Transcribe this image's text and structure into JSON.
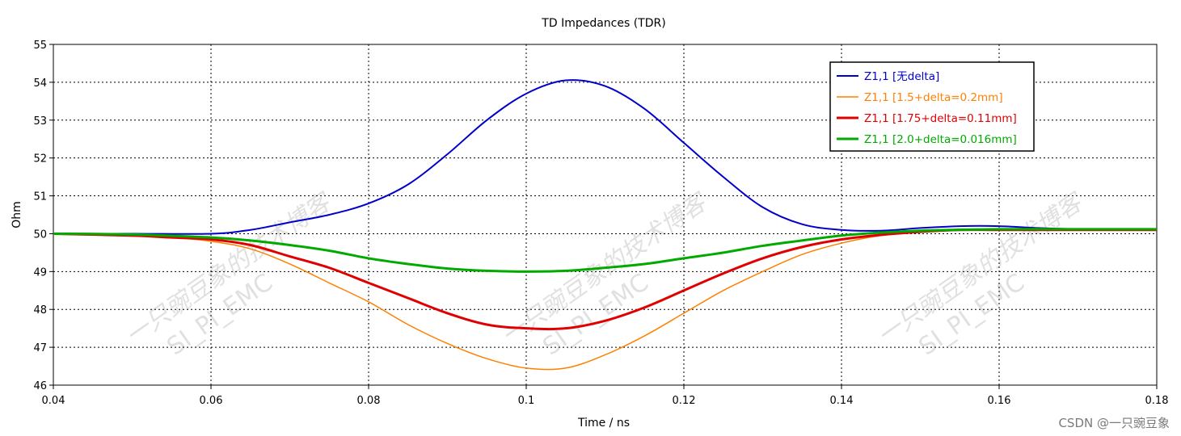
{
  "chart_data": {
    "type": "line",
    "title": "TD Impedances (TDR)",
    "xlabel": "Time / ns",
    "ylabel": "Ohm",
    "xlim": [
      0.04,
      0.18
    ],
    "ylim": [
      46,
      55
    ],
    "xticks": [
      0.04,
      0.06,
      0.08,
      0.1,
      0.12,
      0.14,
      0.16,
      0.18
    ],
    "xtick_labels": [
      "0.04",
      "0.06",
      "0.08",
      "0.1",
      "0.12",
      "0.14",
      "0.16",
      "0.18"
    ],
    "yticks": [
      46,
      47,
      48,
      49,
      50,
      51,
      52,
      53,
      54,
      55
    ],
    "ytick_labels": [
      "46",
      "47",
      "48",
      "49",
      "50",
      "51",
      "52",
      "53",
      "54",
      "55"
    ],
    "grid": true,
    "legend_position": "top-right",
    "series": [
      {
        "name": "Z1,1 [无delta]",
        "color": "#0000cc",
        "x": [
          0.04,
          0.05,
          0.06,
          0.065,
          0.07,
          0.075,
          0.08,
          0.085,
          0.09,
          0.095,
          0.1,
          0.105,
          0.11,
          0.115,
          0.12,
          0.125,
          0.13,
          0.135,
          0.14,
          0.145,
          0.15,
          0.155,
          0.16,
          0.165,
          0.17,
          0.18
        ],
        "y": [
          50.0,
          50.0,
          50.0,
          50.1,
          50.3,
          50.5,
          50.8,
          51.3,
          52.1,
          53.0,
          53.7,
          54.05,
          53.9,
          53.3,
          52.4,
          51.5,
          50.7,
          50.25,
          50.1,
          50.08,
          50.15,
          50.2,
          50.2,
          50.15,
          50.12,
          50.12
        ]
      },
      {
        "name": "Z1,1 [1.5+delta=0.2mm]",
        "color": "#ff8000",
        "x": [
          0.04,
          0.05,
          0.055,
          0.06,
          0.065,
          0.07,
          0.075,
          0.08,
          0.085,
          0.09,
          0.095,
          0.1,
          0.105,
          0.11,
          0.115,
          0.12,
          0.125,
          0.13,
          0.135,
          0.14,
          0.145,
          0.15,
          0.155,
          0.16,
          0.17,
          0.18
        ],
        "y": [
          50.0,
          49.95,
          49.9,
          49.8,
          49.6,
          49.2,
          48.7,
          48.2,
          47.6,
          47.1,
          46.7,
          46.45,
          46.45,
          46.8,
          47.3,
          47.9,
          48.5,
          49.0,
          49.45,
          49.75,
          49.95,
          50.05,
          50.1,
          50.1,
          50.1,
          50.1
        ]
      },
      {
        "name": "Z1,1 [1.75+delta=0.11mm]",
        "color": "#e00000",
        "x": [
          0.04,
          0.05,
          0.055,
          0.06,
          0.065,
          0.07,
          0.075,
          0.08,
          0.085,
          0.09,
          0.095,
          0.1,
          0.105,
          0.11,
          0.115,
          0.12,
          0.125,
          0.13,
          0.135,
          0.14,
          0.145,
          0.15,
          0.155,
          0.16,
          0.17,
          0.18
        ],
        "y": [
          50.0,
          49.95,
          49.9,
          49.85,
          49.7,
          49.4,
          49.1,
          48.7,
          48.3,
          47.9,
          47.6,
          47.5,
          47.5,
          47.7,
          48.05,
          48.5,
          48.95,
          49.35,
          49.65,
          49.85,
          49.97,
          50.05,
          50.1,
          50.1,
          50.1,
          50.1
        ]
      },
      {
        "name": "Z1,1 [2.0+delta=0.016mm]",
        "color": "#00aa00",
        "x": [
          0.04,
          0.05,
          0.06,
          0.065,
          0.07,
          0.075,
          0.08,
          0.085,
          0.09,
          0.095,
          0.1,
          0.105,
          0.11,
          0.115,
          0.12,
          0.125,
          0.13,
          0.135,
          0.14,
          0.145,
          0.15,
          0.16,
          0.17,
          0.18
        ],
        "y": [
          50.0,
          49.98,
          49.9,
          49.82,
          49.7,
          49.55,
          49.35,
          49.2,
          49.08,
          49.02,
          49.0,
          49.02,
          49.1,
          49.2,
          49.35,
          49.5,
          49.68,
          49.82,
          49.95,
          50.03,
          50.08,
          50.12,
          50.12,
          50.12
        ]
      }
    ]
  },
  "watermark": {
    "line1": "一只豌豆象的技术博客",
    "line2": "SI_PI_EMC"
  },
  "credit": "CSDN @一只豌豆象"
}
